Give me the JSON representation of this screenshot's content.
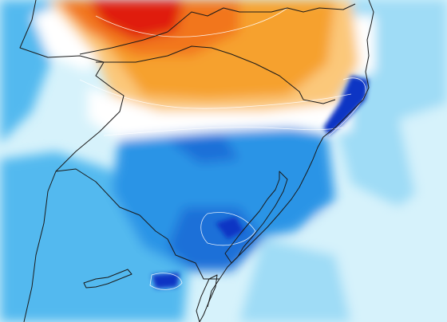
{
  "map": {
    "kind": "weather-model-field",
    "palette": {
      "hot_core": "#e01a0c",
      "hot": "#f2761c",
      "warm": "#f6a12e",
      "mild": "#fbc87a",
      "neutral": "#ffffff",
      "cool_pale": "#d6f2fb",
      "cool_light": "#9fdcf6",
      "cool": "#53b9ef",
      "cold": "#2a94e6",
      "colder": "#1d6fd8",
      "coldest": "#1136c4"
    },
    "contour_color": "#ffffff",
    "border_color": "#1a1a1a"
  }
}
